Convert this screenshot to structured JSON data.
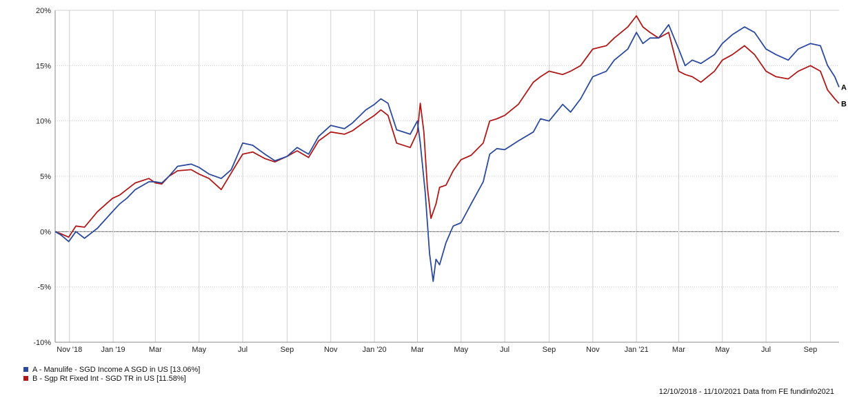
{
  "chart_data": {
    "type": "line",
    "y_axis": {
      "ticks": [
        20,
        15,
        10,
        5,
        0,
        -5,
        -10
      ],
      "tick_labels": [
        "20%",
        "15%",
        "10%",
        "5%",
        "0%",
        "-5%",
        "-10%"
      ],
      "ylim": [
        -10,
        20
      ],
      "grid": true
    },
    "x_axis": {
      "xlim": [
        "2018-10-12",
        "2021-10-11"
      ],
      "ticks": [
        {
          "date": "2018-11-01",
          "label": "Nov '18"
        },
        {
          "date": "2019-01-01",
          "label": "Jan '19"
        },
        {
          "date": "2019-03-01",
          "label": "Mar"
        },
        {
          "date": "2019-05-01",
          "label": "May"
        },
        {
          "date": "2019-07-01",
          "label": "Jul"
        },
        {
          "date": "2019-09-01",
          "label": "Sep"
        },
        {
          "date": "2019-11-01",
          "label": "Nov"
        },
        {
          "date": "2020-01-01",
          "label": "Jan '20"
        },
        {
          "date": "2020-03-01",
          "label": "Mar"
        },
        {
          "date": "2020-05-01",
          "label": "May"
        },
        {
          "date": "2020-07-01",
          "label": "Jul"
        },
        {
          "date": "2020-09-01",
          "label": "Sep"
        },
        {
          "date": "2020-11-01",
          "label": "Nov"
        },
        {
          "date": "2021-01-01",
          "label": "Jan '21"
        },
        {
          "date": "2021-03-01",
          "label": "Mar"
        },
        {
          "date": "2021-05-01",
          "label": "May"
        },
        {
          "date": "2021-07-01",
          "label": "Jul"
        },
        {
          "date": "2021-09-01",
          "label": "Sep"
        }
      ],
      "grid": true
    },
    "zero_line": "dotted",
    "legend_placement": "bottom-left",
    "series": [
      {
        "name": "A - Manulife - SGD Income A SGD in US [13.06%]",
        "end_label": "A",
        "color": "#2b4a9e",
        "points": [
          [
            "2018-10-12",
            0.0
          ],
          [
            "2018-10-20",
            -0.3
          ],
          [
            "2018-10-31",
            -0.9
          ],
          [
            "2018-11-10",
            0.0
          ],
          [
            "2018-11-22",
            -0.6
          ],
          [
            "2018-12-10",
            0.3
          ],
          [
            "2018-12-31",
            1.8
          ],
          [
            "2019-01-10",
            2.5
          ],
          [
            "2019-01-20",
            3.0
          ],
          [
            "2019-02-01",
            3.8
          ],
          [
            "2019-02-20",
            4.5
          ],
          [
            "2019-03-01",
            4.5
          ],
          [
            "2019-03-10",
            4.4
          ],
          [
            "2019-03-20",
            5.0
          ],
          [
            "2019-04-01",
            5.9
          ],
          [
            "2019-04-20",
            6.1
          ],
          [
            "2019-05-01",
            5.8
          ],
          [
            "2019-05-15",
            5.2
          ],
          [
            "2019-06-01",
            4.8
          ],
          [
            "2019-06-15",
            5.6
          ],
          [
            "2019-07-01",
            8.0
          ],
          [
            "2019-07-15",
            7.8
          ],
          [
            "2019-08-01",
            7.0
          ],
          [
            "2019-08-15",
            6.4
          ],
          [
            "2019-09-01",
            6.8
          ],
          [
            "2019-09-15",
            7.6
          ],
          [
            "2019-10-01",
            7.0
          ],
          [
            "2019-10-15",
            8.6
          ],
          [
            "2019-11-01",
            9.6
          ],
          [
            "2019-11-20",
            9.3
          ],
          [
            "2019-12-01",
            9.8
          ],
          [
            "2019-12-20",
            11.0
          ],
          [
            "2020-01-01",
            11.5
          ],
          [
            "2020-01-10",
            12.0
          ],
          [
            "2020-01-20",
            11.6
          ],
          [
            "2020-02-01",
            9.2
          ],
          [
            "2020-02-20",
            8.8
          ],
          [
            "2020-03-01",
            10.0
          ],
          [
            "2020-03-05",
            8.0
          ],
          [
            "2020-03-12",
            3.5
          ],
          [
            "2020-03-18",
            -2.0
          ],
          [
            "2020-03-23",
            -4.5
          ],
          [
            "2020-03-27",
            -2.5
          ],
          [
            "2020-04-01",
            -3.0
          ],
          [
            "2020-04-10",
            -1.0
          ],
          [
            "2020-04-20",
            0.5
          ],
          [
            "2020-05-01",
            0.8
          ],
          [
            "2020-05-15",
            2.5
          ],
          [
            "2020-06-01",
            4.5
          ],
          [
            "2020-06-10",
            7.0
          ],
          [
            "2020-06-20",
            7.5
          ],
          [
            "2020-07-01",
            7.4
          ],
          [
            "2020-07-20",
            8.2
          ],
          [
            "2020-08-10",
            9.0
          ],
          [
            "2020-08-20",
            10.2
          ],
          [
            "2020-09-01",
            10.0
          ],
          [
            "2020-09-20",
            11.5
          ],
          [
            "2020-10-01",
            10.8
          ],
          [
            "2020-10-15",
            12.0
          ],
          [
            "2020-11-01",
            14.0
          ],
          [
            "2020-11-20",
            14.5
          ],
          [
            "2020-12-01",
            15.5
          ],
          [
            "2020-12-20",
            16.5
          ],
          [
            "2021-01-01",
            18.0
          ],
          [
            "2021-01-10",
            17.0
          ],
          [
            "2021-01-20",
            17.5
          ],
          [
            "2021-02-01",
            17.5
          ],
          [
            "2021-02-15",
            18.7
          ],
          [
            "2021-03-01",
            16.5
          ],
          [
            "2021-03-10",
            15.0
          ],
          [
            "2021-03-20",
            15.5
          ],
          [
            "2021-04-01",
            15.2
          ],
          [
            "2021-04-20",
            16.0
          ],
          [
            "2021-05-01",
            17.0
          ],
          [
            "2021-05-15",
            17.8
          ],
          [
            "2021-06-01",
            18.5
          ],
          [
            "2021-06-15",
            18.0
          ],
          [
            "2021-07-01",
            16.5
          ],
          [
            "2021-07-15",
            16.0
          ],
          [
            "2021-08-01",
            15.5
          ],
          [
            "2021-08-15",
            16.5
          ],
          [
            "2021-09-01",
            17.0
          ],
          [
            "2021-09-15",
            16.8
          ],
          [
            "2021-09-25",
            15.0
          ],
          [
            "2021-10-05",
            14.0
          ],
          [
            "2021-10-11",
            13.06
          ]
        ]
      },
      {
        "name": "B - Sgp Rt Fixed Int - SGD TR in US [11.58%]",
        "end_label": "B",
        "color": "#b01818",
        "points": [
          [
            "2018-10-12",
            0.0
          ],
          [
            "2018-10-20",
            -0.2
          ],
          [
            "2018-10-31",
            -0.5
          ],
          [
            "2018-11-10",
            0.5
          ],
          [
            "2018-11-22",
            0.4
          ],
          [
            "2018-12-10",
            1.8
          ],
          [
            "2018-12-31",
            3.0
          ],
          [
            "2019-01-10",
            3.3
          ],
          [
            "2019-01-20",
            3.8
          ],
          [
            "2019-02-01",
            4.4
          ],
          [
            "2019-02-20",
            4.8
          ],
          [
            "2019-03-01",
            4.4
          ],
          [
            "2019-03-10",
            4.3
          ],
          [
            "2019-03-20",
            5.0
          ],
          [
            "2019-04-01",
            5.5
          ],
          [
            "2019-04-20",
            5.6
          ],
          [
            "2019-05-01",
            5.2
          ],
          [
            "2019-05-15",
            4.8
          ],
          [
            "2019-06-01",
            3.8
          ],
          [
            "2019-06-15",
            5.3
          ],
          [
            "2019-07-01",
            7.0
          ],
          [
            "2019-07-15",
            7.2
          ],
          [
            "2019-08-01",
            6.6
          ],
          [
            "2019-08-15",
            6.3
          ],
          [
            "2019-09-01",
            6.8
          ],
          [
            "2019-09-15",
            7.3
          ],
          [
            "2019-10-01",
            6.7
          ],
          [
            "2019-10-15",
            8.2
          ],
          [
            "2019-11-01",
            9.0
          ],
          [
            "2019-11-20",
            8.8
          ],
          [
            "2019-12-01",
            9.1
          ],
          [
            "2019-12-20",
            10.0
          ],
          [
            "2020-01-01",
            10.5
          ],
          [
            "2020-01-10",
            11.0
          ],
          [
            "2020-01-20",
            10.5
          ],
          [
            "2020-02-01",
            8.0
          ],
          [
            "2020-02-20",
            7.6
          ],
          [
            "2020-03-01",
            9.0
          ],
          [
            "2020-03-05",
            11.6
          ],
          [
            "2020-03-10",
            9.0
          ],
          [
            "2020-03-15",
            4.0
          ],
          [
            "2020-03-20",
            1.2
          ],
          [
            "2020-03-27",
            2.5
          ],
          [
            "2020-04-01",
            4.0
          ],
          [
            "2020-04-10",
            4.2
          ],
          [
            "2020-04-20",
            5.5
          ],
          [
            "2020-05-01",
            6.5
          ],
          [
            "2020-05-15",
            6.9
          ],
          [
            "2020-06-01",
            8.0
          ],
          [
            "2020-06-10",
            10.0
          ],
          [
            "2020-06-20",
            10.2
          ],
          [
            "2020-07-01",
            10.5
          ],
          [
            "2020-07-20",
            11.5
          ],
          [
            "2020-08-10",
            13.5
          ],
          [
            "2020-08-20",
            14.0
          ],
          [
            "2020-09-01",
            14.5
          ],
          [
            "2020-09-20",
            14.2
          ],
          [
            "2020-10-01",
            14.5
          ],
          [
            "2020-10-15",
            15.0
          ],
          [
            "2020-11-01",
            16.5
          ],
          [
            "2020-11-20",
            16.8
          ],
          [
            "2020-12-01",
            17.5
          ],
          [
            "2020-12-20",
            18.5
          ],
          [
            "2021-01-01",
            19.5
          ],
          [
            "2021-01-10",
            18.5
          ],
          [
            "2021-01-20",
            18.0
          ],
          [
            "2021-02-01",
            17.5
          ],
          [
            "2021-02-15",
            18.0
          ],
          [
            "2021-03-01",
            14.5
          ],
          [
            "2021-03-10",
            14.2
          ],
          [
            "2021-03-20",
            14.0
          ],
          [
            "2021-04-01",
            13.5
          ],
          [
            "2021-04-20",
            14.5
          ],
          [
            "2021-05-01",
            15.5
          ],
          [
            "2021-05-15",
            16.0
          ],
          [
            "2021-06-01",
            16.8
          ],
          [
            "2021-06-15",
            16.0
          ],
          [
            "2021-07-01",
            14.5
          ],
          [
            "2021-07-15",
            14.0
          ],
          [
            "2021-08-01",
            13.8
          ],
          [
            "2021-08-15",
            14.5
          ],
          [
            "2021-09-01",
            15.0
          ],
          [
            "2021-09-15",
            14.5
          ],
          [
            "2021-09-25",
            12.8
          ],
          [
            "2021-10-05",
            12.0
          ],
          [
            "2021-10-11",
            11.58
          ]
        ]
      }
    ]
  },
  "footer_text": "12/10/2018 - 11/10/2021 Data from FE fundinfo2021"
}
